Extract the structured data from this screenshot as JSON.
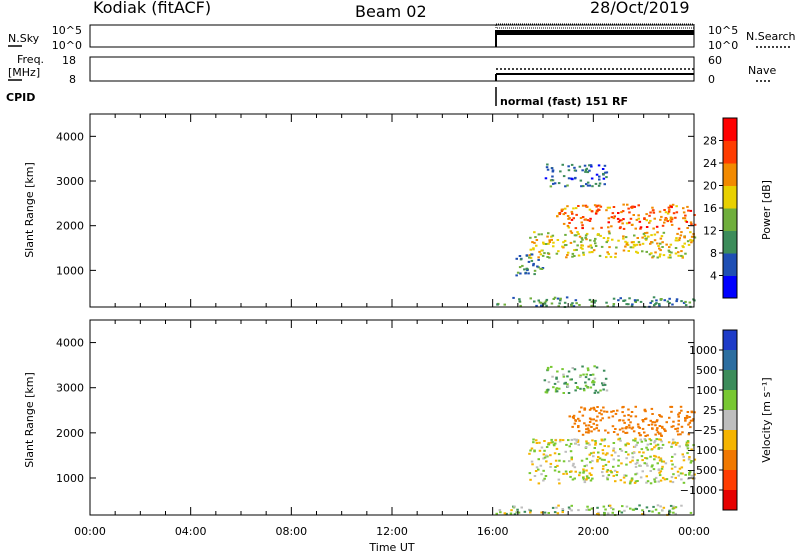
{
  "header": {
    "station": "Kodiak (fitACF)",
    "beam": "Beam 02",
    "date": "28/Oct/2019"
  },
  "panels": {
    "nsky": {
      "label": "N.Sky",
      "ticks": [
        "10^5",
        "10^0"
      ],
      "right_label": "N.Search",
      "right_ticks": [
        "10^5",
        "10^0"
      ]
    },
    "freq": {
      "label_top": "Freq.",
      "label_bottom": "[MHz]",
      "ticks": [
        "18",
        "8"
      ],
      "right_label": "Nave",
      "right_ticks": [
        "60",
        "0"
      ]
    },
    "cpid": {
      "label": "CPID",
      "text": "normal (fast) 151 RF"
    }
  },
  "chart_data": [
    {
      "type": "heatmap",
      "title": "",
      "xlabel": "Time UT",
      "ylabel": "Slant Range [km]",
      "x_ticks": [
        "00:00",
        "04:00",
        "08:00",
        "12:00",
        "16:00",
        "20:00",
        "00:00"
      ],
      "xlim_hours": [
        0,
        24
      ],
      "ylim_km": [
        180,
        4500
      ],
      "y_ticks": [
        1000,
        2000,
        3000,
        4000
      ],
      "data_start_hour": 16.1,
      "colorbar": {
        "label": "Power [dB]",
        "ticks": [
          "4",
          "8",
          "12",
          "16",
          "20",
          "24",
          "28"
        ],
        "colors": [
          "#0000ff",
          "#1f4fb4",
          "#3c8c5a",
          "#6fae3c",
          "#e8d000",
          "#f28a00",
          "#ff3c00",
          "#ff0000"
        ]
      },
      "regions": [
        {
          "name": "near-range band",
          "hours": [
            16.1,
            24.0
          ],
          "range_km": [
            200,
            420
          ],
          "level_db": 10
        },
        {
          "name": "lower echo band",
          "hours": [
            17.4,
            24.0
          ],
          "range_km": [
            1300,
            1900
          ],
          "level_db": 18
        },
        {
          "name": "upper echo band",
          "hours": [
            18.5,
            24.0
          ],
          "range_km": [
            1950,
            2500
          ],
          "level_db": 24
        },
        {
          "name": "early patch",
          "hours": [
            16.9,
            18.0
          ],
          "range_km": [
            900,
            1400
          ],
          "level_db": 9
        },
        {
          "name": "far scatter",
          "hours": [
            18.0,
            20.5
          ],
          "range_km": [
            2900,
            3400
          ],
          "level_db": 8
        }
      ]
    },
    {
      "type": "heatmap",
      "title": "",
      "xlabel": "Time UT",
      "ylabel": "Slant Range [km]",
      "x_ticks": [
        "00:00",
        "04:00",
        "08:00",
        "12:00",
        "16:00",
        "20:00",
        "00:00"
      ],
      "xlim_hours": [
        0,
        24
      ],
      "ylim_km": [
        180,
        4500
      ],
      "y_ticks": [
        1000,
        2000,
        3000,
        4000
      ],
      "data_start_hour": 16.1,
      "colorbar": {
        "label": "Velocity [m s⁻¹]",
        "ticks": [
          "1000",
          "500",
          "100",
          "25",
          "−25",
          "−100",
          "−500",
          "−1000"
        ],
        "colors": [
          "#1e3cc8",
          "#2c6ea0",
          "#3c8c5a",
          "#78c832",
          "#bebebe",
          "#f5b400",
          "#f07800",
          "#ff3c00",
          "#e60000"
        ]
      },
      "regions": [
        {
          "name": "near-range band",
          "hours": [
            16.1,
            24.0
          ],
          "range_km": [
            200,
            420
          ],
          "velocity": 50
        },
        {
          "name": "ground scatter",
          "hours": [
            17.4,
            24.0
          ],
          "range_km": [
            900,
            1900
          ],
          "velocity": 0
        },
        {
          "name": "upper echo band",
          "hours": [
            19.0,
            24.0
          ],
          "range_km": [
            1950,
            2600
          ],
          "velocity": -400
        },
        {
          "name": "far scatter",
          "hours": [
            18.0,
            20.5
          ],
          "range_km": [
            2900,
            3500
          ],
          "velocity": 100
        }
      ]
    }
  ]
}
